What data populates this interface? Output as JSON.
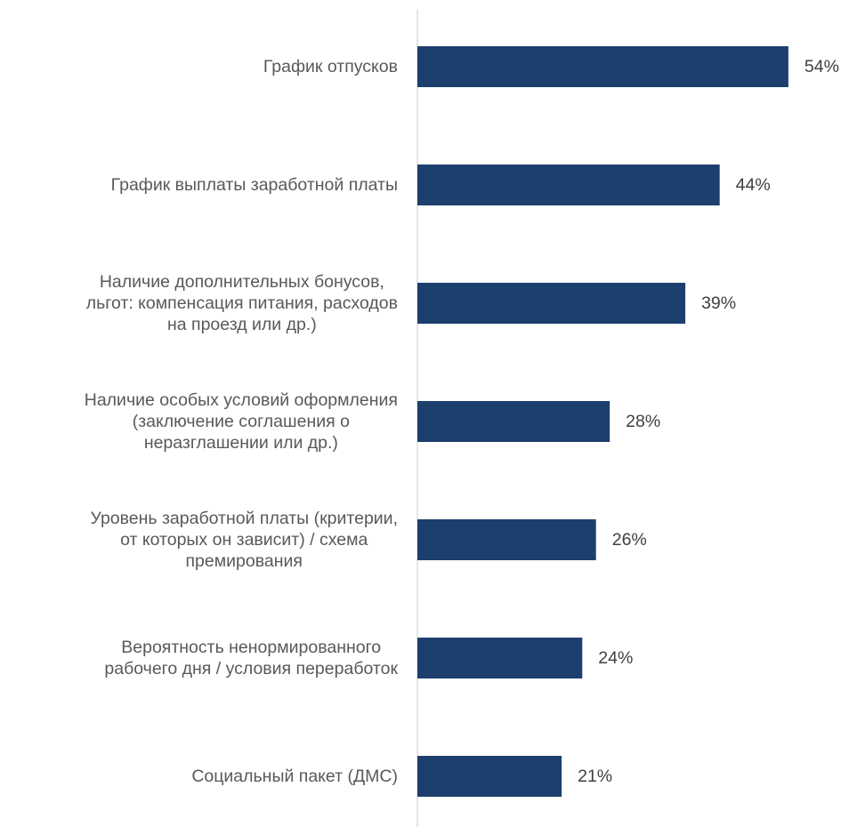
{
  "chart_data": {
    "type": "bar",
    "orientation": "horizontal",
    "categories": [
      [
        "График отпусков"
      ],
      [
        "График выплаты заработной платы"
      ],
      [
        "Наличие дополнительных бонусов,",
        "льгот: компенсация питания, расходов",
        "на проезд или др.)"
      ],
      [
        "Наличие особых условий оформления",
        "(заключение соглашения о",
        "неразглашении или др.)"
      ],
      [
        "Уровень заработной платы (критерии,",
        "от которых он зависит) / схема",
        "премирования"
      ],
      [
        "Вероятность ненормированного",
        "рабочего дня / условия переработок"
      ],
      [
        "Социальный пакет (ДМС)"
      ]
    ],
    "values": [
      54,
      44,
      39,
      28,
      26,
      24,
      21
    ],
    "value_labels": [
      "54%",
      "44%",
      "39%",
      "28%",
      "26%",
      "24%",
      "21%"
    ],
    "unit": "%",
    "xlim": [
      0,
      60
    ],
    "grid": false,
    "legend": "none",
    "colors": {
      "bar": "#1c3f6e",
      "axis": "#d9d9d9",
      "category_text": "#595959",
      "value_text": "#404040"
    }
  }
}
